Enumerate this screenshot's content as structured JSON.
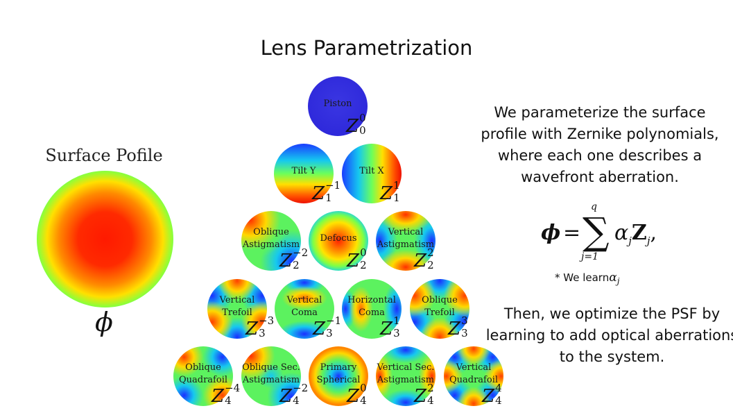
{
  "title": "Lens Parametrization",
  "surface": {
    "label": "Surface Pofile",
    "symbol": "ϕ"
  },
  "zernike": [
    {
      "label_lines": [
        "Piston"
      ],
      "n": "0",
      "m": "0"
    },
    {
      "label_lines": [
        "Tilt Y"
      ],
      "n": "1",
      "m": "−1"
    },
    {
      "label_lines": [
        "Tilt X"
      ],
      "n": "1",
      "m": "1"
    },
    {
      "label_lines": [
        "Oblique",
        "Astigmatism"
      ],
      "n": "2",
      "m": "−2"
    },
    {
      "label_lines": [
        "Defocus"
      ],
      "n": "2",
      "m": "0"
    },
    {
      "label_lines": [
        "Vertical",
        "Astigmatism"
      ],
      "n": "2",
      "m": "2"
    },
    {
      "label_lines": [
        "Vertical",
        "Trefoil"
      ],
      "n": "3",
      "m": "−3"
    },
    {
      "label_lines": [
        "Vertical",
        "Coma"
      ],
      "n": "3",
      "m": "−1"
    },
    {
      "label_lines": [
        "Horizontal",
        "Coma"
      ],
      "n": "3",
      "m": "1"
    },
    {
      "label_lines": [
        "Oblique",
        "Trefoil"
      ],
      "n": "3",
      "m": "3"
    },
    {
      "label_lines": [
        "Oblique",
        "Quadrafoil"
      ],
      "n": "4",
      "m": "−4"
    },
    {
      "label_lines": [
        "Oblique Sec.",
        "Astigmatism"
      ],
      "n": "4",
      "m": "−2"
    },
    {
      "label_lines": [
        "Primary",
        "Spherical"
      ],
      "n": "4",
      "m": "0"
    },
    {
      "label_lines": [
        "Vertical Sec.",
        "Astigmatism"
      ],
      "n": "4",
      "m": "2"
    },
    {
      "label_lines": [
        "Vertical",
        "Quadrafoil"
      ],
      "n": "4",
      "m": "4"
    }
  ],
  "description": "We parameterize the surface profile with Zernike polynomials, where each one describes a wavefront aberration.",
  "formula": {
    "lhs": "ϕ",
    "equals": "=",
    "sum": "∑",
    "upper": "q",
    "lower": "j=1",
    "coef": "α",
    "basis": "Z",
    "index": "j",
    "tail": ","
  },
  "learn_note": {
    "prefix": "* We learn",
    "symbol": "α",
    "index": "j"
  },
  "description2": "Then, we optimize the PSF by learning to add optical aberrations to the system."
}
